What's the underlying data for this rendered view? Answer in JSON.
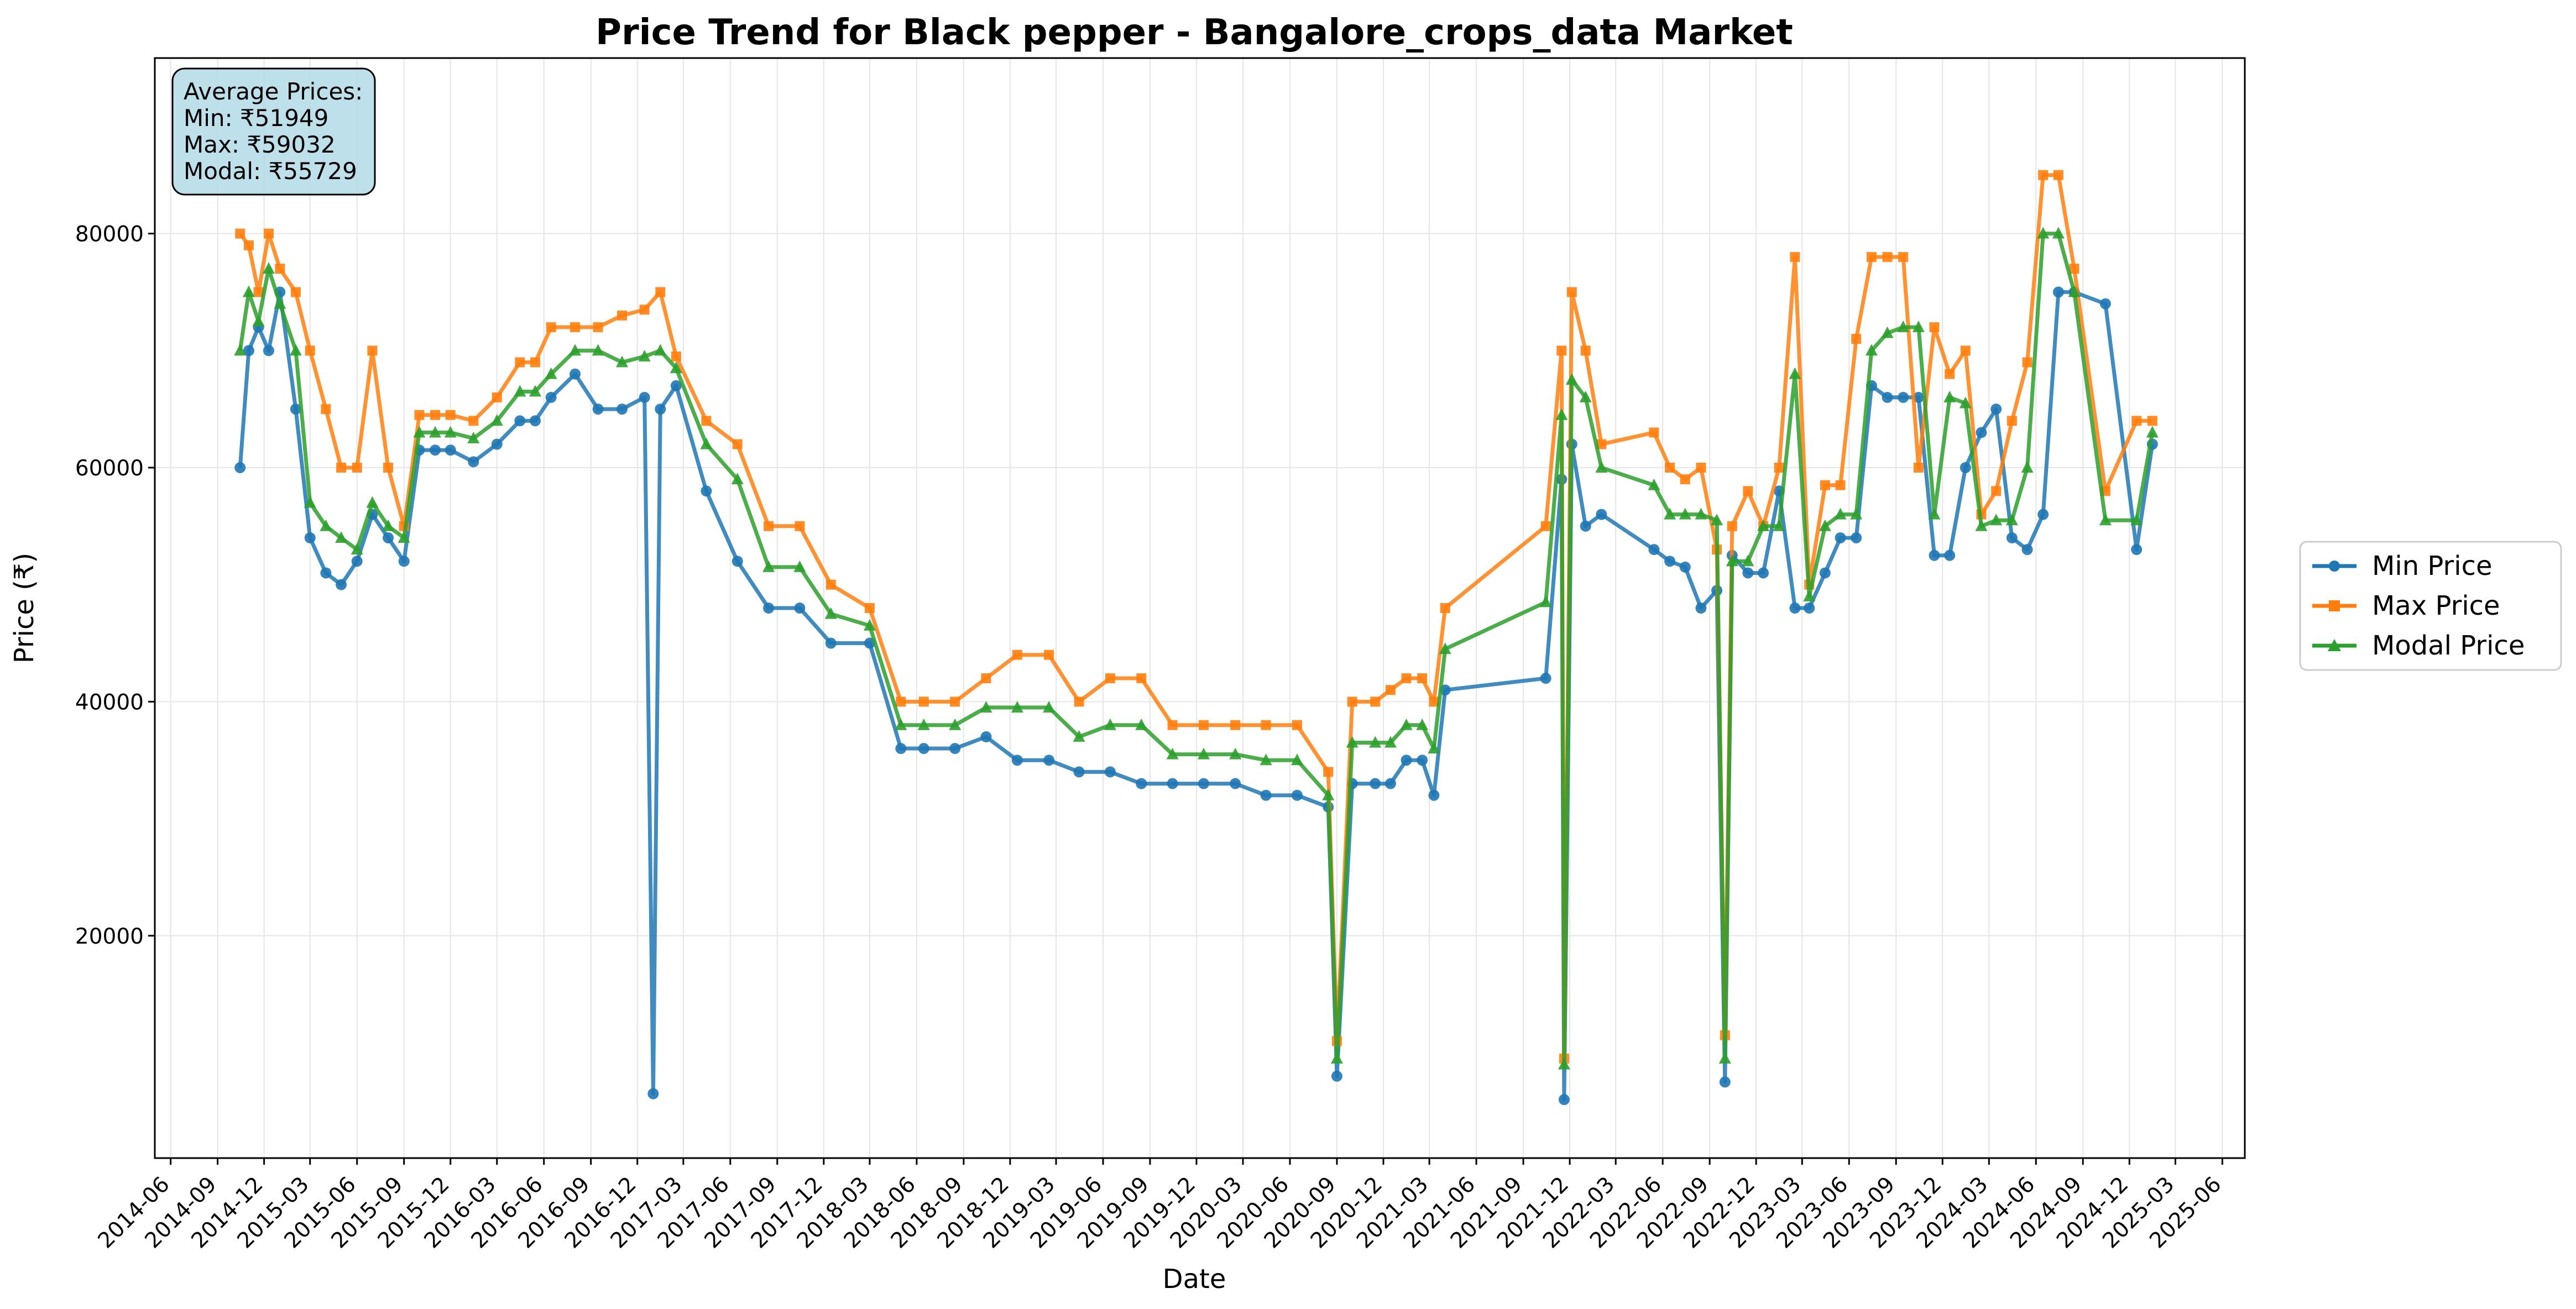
{
  "colors": {
    "min": "#1f77b4",
    "max": "#ff7f0e",
    "modal": "#2ca02c",
    "grid": "#e5e5e5",
    "annotation_fill": "#add8e6"
  },
  "annotation": {
    "title": "Average Prices:",
    "min": "Min: ₹51949",
    "max": "Max: ₹59032",
    "modal": "Modal: ₹55729"
  },
  "chart_data": {
    "type": "line",
    "title": "Price Trend for Black pepper - Bangalore_crops_data Market",
    "xlabel": "Date",
    "ylabel": "Price (₹)",
    "xlim": [
      "2014-05-01",
      "2025-07-15"
    ],
    "ylim": [
      1000,
      95000
    ],
    "grid": true,
    "legend_position": "right-outside",
    "x_ticks": [
      "2014-06",
      "2014-09",
      "2014-12",
      "2015-03",
      "2015-06",
      "2015-09",
      "2015-12",
      "2016-03",
      "2016-06",
      "2016-09",
      "2016-12",
      "2017-03",
      "2017-06",
      "2017-09",
      "2017-12",
      "2018-03",
      "2018-06",
      "2018-09",
      "2018-12",
      "2019-03",
      "2019-06",
      "2019-09",
      "2019-12",
      "2020-03",
      "2020-06",
      "2020-09",
      "2020-12",
      "2021-03",
      "2021-06",
      "2021-09",
      "2021-12",
      "2022-03",
      "2022-06",
      "2022-09",
      "2022-12",
      "2023-03",
      "2023-06",
      "2023-09",
      "2023-12",
      "2024-03",
      "2024-06",
      "2024-09",
      "2024-12",
      "2025-03",
      "2025-06"
    ],
    "y_ticks": [
      20000,
      40000,
      60000,
      80000
    ],
    "y_tick_labels": [
      "20000",
      "40000",
      "60000",
      "80000"
    ],
    "x": [
      "2014-10-15",
      "2014-11-01",
      "2014-11-20",
      "2014-12-10",
      "2015-01-01",
      "2015-02-01",
      "2015-03-01",
      "2015-04-01",
      "2015-05-01",
      "2015-06-01",
      "2015-07-01",
      "2015-08-01",
      "2015-09-01",
      "2015-10-01",
      "2015-11-01",
      "2015-12-01",
      "2016-01-15",
      "2016-03-01",
      "2016-04-15",
      "2016-05-15",
      "2016-06-15",
      "2016-08-01",
      "2016-09-15",
      "2016-11-01",
      "2016-12-15",
      "2017-01-15",
      "2017-02-15",
      "2017-04-15",
      "2017-06-15",
      "2017-08-15",
      "2017-10-15",
      "2017-12-15",
      "2018-03-01",
      "2018-05-01",
      "2018-06-15",
      "2018-08-15",
      "2018-10-15",
      "2018-12-15",
      "2019-02-15",
      "2019-04-15",
      "2019-06-15",
      "2019-08-15",
      "2019-10-15",
      "2019-12-15",
      "2020-02-15",
      "2020-04-15",
      "2020-06-15",
      "2020-08-15",
      "2020-10-01",
      "2020-11-15",
      "2020-12-15",
      "2021-01-15",
      "2021-02-15",
      "2021-03-10",
      "2021-04-01",
      "2021-10-15",
      "2021-11-15",
      "2021-12-05",
      "2022-01-01",
      "2022-02-01",
      "2022-05-15",
      "2022-06-15",
      "2022-07-15",
      "2022-08-15",
      "2022-09-15",
      "2022-10-15",
      "2022-11-15",
      "2022-12-15",
      "2023-01-15",
      "2023-02-15",
      "2023-03-15",
      "2023-04-15",
      "2023-05-15",
      "2023-06-15",
      "2023-07-15",
      "2023-08-15",
      "2023-09-15",
      "2023-10-15",
      "2023-11-15",
      "2023-12-15",
      "2024-01-15",
      "2024-02-15",
      "2024-03-15",
      "2024-04-15",
      "2024-05-15",
      "2024-06-15",
      "2024-07-15",
      "2024-08-15",
      "2024-10-15",
      "2024-12-15",
      "2025-01-15"
    ],
    "series": [
      {
        "name": "Min Price",
        "values": [
          60000,
          70000,
          72000,
          70000,
          75000,
          65000,
          54000,
          51000,
          50000,
          52000,
          56000,
          54000,
          52000,
          61500,
          61500,
          61500,
          60500,
          62000,
          64000,
          64000,
          66000,
          68000,
          65000,
          65000,
          66000,
          65000,
          67000,
          58000,
          52000,
          48000,
          48000,
          45000,
          45000,
          36000,
          36000,
          36000,
          37000,
          35000,
          35000,
          34000,
          34000,
          33000,
          33000,
          33000,
          33000,
          32000,
          32000,
          31000,
          33000,
          33000,
          33000,
          35000,
          35000,
          32000,
          41000,
          42000,
          59000,
          62000,
          55000,
          56000,
          53000,
          52000,
          51500,
          48000,
          49500,
          52500,
          51000,
          51000,
          58000,
          48000,
          48000,
          51000,
          54000,
          54000,
          67000,
          66000,
          66000,
          66000,
          52500,
          52500,
          60000,
          63000,
          65000,
          54000,
          53000,
          56000,
          75000,
          75000,
          74000,
          53000,
          62000
        ]
      },
      {
        "name": "Max Price",
        "values": [
          80000,
          79000,
          75000,
          80000,
          77000,
          75000,
          70000,
          65000,
          60000,
          60000,
          70000,
          60000,
          55000,
          64500,
          64500,
          64500,
          64000,
          66000,
          69000,
          69000,
          72000,
          72000,
          72000,
          73000,
          73500,
          75000,
          69500,
          64000,
          62000,
          55000,
          55000,
          50000,
          48000,
          40000,
          40000,
          40000,
          42000,
          44000,
          44000,
          40000,
          42000,
          42000,
          38000,
          38000,
          38000,
          38000,
          38000,
          34000,
          40000,
          40000,
          41000,
          42000,
          42000,
          40000,
          48000,
          55000,
          70000,
          75000,
          70000,
          62000,
          63000,
          60000,
          59000,
          60000,
          53000,
          55000,
          58000,
          55000,
          60000,
          78000,
          50000,
          58500,
          58500,
          71000,
          78000,
          78000,
          78000,
          60000,
          72000,
          68000,
          70000,
          56000,
          58000,
          64000,
          69000,
          85000,
          85000,
          77000,
          58000,
          64000,
          64000
        ]
      },
      {
        "name": "Modal Price",
        "values": [
          70000,
          75000,
          72500,
          77000,
          74000,
          70000,
          57000,
          55000,
          54000,
          53000,
          57000,
          55000,
          54000,
          63000,
          63000,
          63000,
          62500,
          64000,
          66500,
          66500,
          68000,
          70000,
          70000,
          69000,
          69500,
          70000,
          68500,
          62000,
          59000,
          51500,
          51500,
          47500,
          46500,
          38000,
          38000,
          38000,
          39500,
          39500,
          39500,
          37000,
          38000,
          38000,
          35500,
          35500,
          35500,
          35000,
          35000,
          32000,
          36500,
          36500,
          36500,
          38000,
          38000,
          36000,
          44500,
          48500,
          64500,
          67500,
          66000,
          60000,
          58500,
          56000,
          56000,
          56000,
          55500,
          52000,
          52000,
          55000,
          55000,
          68000,
          49000,
          55000,
          56000,
          56000,
          70000,
          71500,
          72000,
          72000,
          56000,
          66000,
          65500,
          55000,
          55500,
          55500,
          60000,
          80000,
          80000,
          75000,
          55500,
          55500,
          63000
        ]
      }
    ],
    "spikes": [
      {
        "series": "Min Price",
        "x": "2017-01-01",
        "value": 6500
      },
      {
        "series": "Min Price",
        "x": "2020-09-01",
        "value": 8000
      },
      {
        "series": "Max Price",
        "x": "2020-09-01",
        "value": 11000
      },
      {
        "series": "Modal Price",
        "x": "2020-09-01",
        "value": 9500
      },
      {
        "series": "Min Price",
        "x": "2021-11-20",
        "value": 6000
      },
      {
        "series": "Max Price",
        "x": "2021-11-20",
        "value": 9500
      },
      {
        "series": "Modal Price",
        "x": "2021-11-20",
        "value": 9000
      },
      {
        "series": "Min Price",
        "x": "2022-10-01",
        "value": 7500
      },
      {
        "series": "Max Price",
        "x": "2022-10-01",
        "value": 11500
      },
      {
        "series": "Modal Price",
        "x": "2022-10-01",
        "value": 9500
      }
    ]
  }
}
